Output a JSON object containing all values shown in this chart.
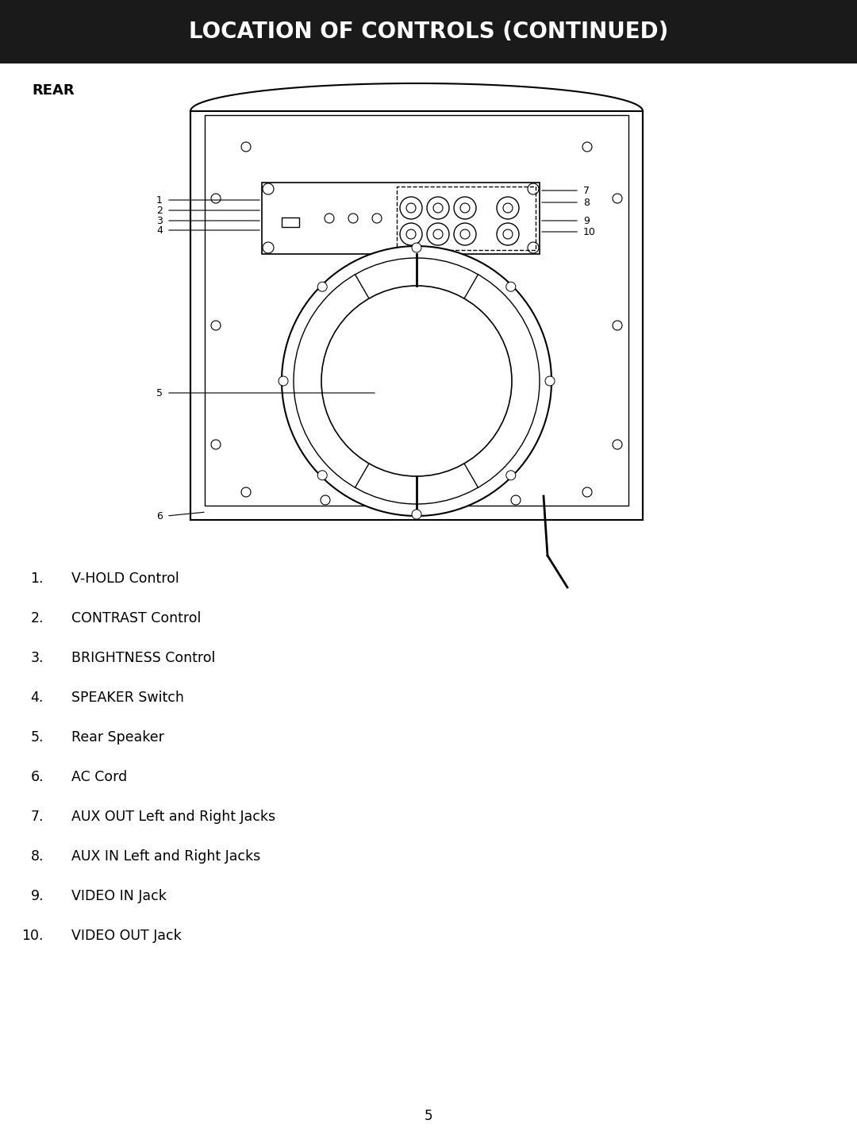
{
  "title": "LOCATION OF CONTROLS (CONTINUED)",
  "title_bg": "#1a1a1a",
  "title_color": "#ffffff",
  "section_label": "REAR",
  "page_number": "5",
  "legend_items": [
    {
      "num": "1.",
      "text": "V-HOLD Control"
    },
    {
      "num": "2.",
      "text": "CONTRAST Control"
    },
    {
      "num": "3.",
      "text": "BRIGHTNESS Control"
    },
    {
      "num": "4.",
      "text": "SPEAKER Switch"
    },
    {
      "num": "5.",
      "text": "Rear Speaker"
    },
    {
      "num": "6.",
      "text": "AC Cord"
    },
    {
      "num": "7.",
      "text": "AUX OUT Left and Right Jacks"
    },
    {
      "num": "8.",
      "text": "AUX IN Left and Right Jacks"
    },
    {
      "num": "9.",
      "text": "VIDEO IN Jack"
    },
    {
      "num": "10.",
      "text": "VIDEO OUT Jack"
    }
  ],
  "bg_color": "#ffffff",
  "line_color": "#000000"
}
